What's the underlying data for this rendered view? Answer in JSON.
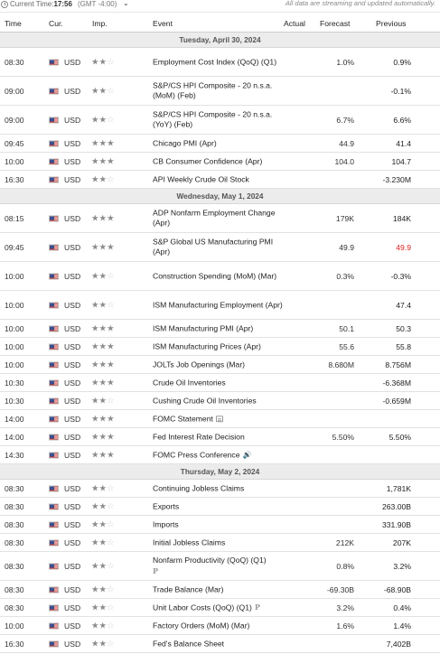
{
  "topbar": {
    "time_label": "Current Time:",
    "time_value": "17:56",
    "timezone": "(GMT -4:00)",
    "chevron": "⌄",
    "notice": "All data are streaming and updated automatically."
  },
  "columns": {
    "time": "Time",
    "currency": "Cur.",
    "importance": "Imp.",
    "event": "Event",
    "actual": "Actual",
    "forecast": "Forecast",
    "previous": "Previous"
  },
  "colors": {
    "revised_down": "#e01f1f",
    "date_row_bg": "#ececec",
    "star_on": "#8c8c8c",
    "star_off": "#cfcfcf"
  },
  "days": [
    {
      "date": "Tuesday, April 30, 2024",
      "events": [
        {
          "time": "08:30",
          "cur": "USD",
          "stars": 2,
          "event": "Employment Cost Index (QoQ) (Q1)",
          "actual": "",
          "forecast": "1.0%",
          "previous": "0.9%",
          "tall": true
        },
        {
          "time": "09:00",
          "cur": "USD",
          "stars": 2,
          "event": "S&P/CS HPI Composite - 20 n.s.a. (MoM) (Feb)",
          "actual": "",
          "forecast": "",
          "previous": "-0.1%",
          "tall": true
        },
        {
          "time": "09:00",
          "cur": "USD",
          "stars": 2,
          "event": "S&P/CS HPI Composite - 20 n.s.a. (YoY) (Feb)",
          "actual": "",
          "forecast": "6.7%",
          "previous": "6.6%",
          "tall": true
        },
        {
          "time": "09:45",
          "cur": "USD",
          "stars": 3,
          "event": "Chicago PMI (Apr)",
          "actual": "",
          "forecast": "44.9",
          "previous": "41.4"
        },
        {
          "time": "10:00",
          "cur": "USD",
          "stars": 3,
          "event": "CB Consumer Confidence (Apr)",
          "actual": "",
          "forecast": "104.0",
          "previous": "104.7"
        },
        {
          "time": "16:30",
          "cur": "USD",
          "stars": 2,
          "event": "API Weekly Crude Oil Stock",
          "actual": "",
          "forecast": "",
          "previous": "-3.230M"
        }
      ]
    },
    {
      "date": "Wednesday, May 1, 2024",
      "events": [
        {
          "time": "08:15",
          "cur": "USD",
          "stars": 3,
          "event": "ADP Nonfarm Employment Change (Apr)",
          "actual": "",
          "forecast": "179K",
          "previous": "184K",
          "tall": true
        },
        {
          "time": "09:45",
          "cur": "USD",
          "stars": 3,
          "event": "S&P Global US Manufacturing PMI (Apr)",
          "actual": "",
          "forecast": "49.9",
          "previous": "49.9",
          "prev_red": true,
          "tall": true
        },
        {
          "time": "10:00",
          "cur": "USD",
          "stars": 2,
          "event": "Construction Spending (MoM) (Mar)",
          "actual": "",
          "forecast": "0.3%",
          "previous": "-0.3%",
          "tall": true
        },
        {
          "time": "10:00",
          "cur": "USD",
          "stars": 2,
          "event": "ISM Manufacturing Employment (Apr)",
          "actual": "",
          "forecast": "",
          "previous": "47.4",
          "tall": true
        },
        {
          "time": "10:00",
          "cur": "USD",
          "stars": 3,
          "event": "ISM Manufacturing PMI (Apr)",
          "actual": "",
          "forecast": "50.1",
          "previous": "50.3"
        },
        {
          "time": "10:00",
          "cur": "USD",
          "stars": 3,
          "event": "ISM Manufacturing Prices (Apr)",
          "actual": "",
          "forecast": "55.6",
          "previous": "55.8"
        },
        {
          "time": "10:00",
          "cur": "USD",
          "stars": 3,
          "event": "JOLTs Job Openings (Mar)",
          "actual": "",
          "forecast": "8.680M",
          "previous": "8.756M"
        },
        {
          "time": "10:30",
          "cur": "USD",
          "stars": 3,
          "event": "Crude Oil Inventories",
          "actual": "",
          "forecast": "",
          "previous": "-6.368M"
        },
        {
          "time": "10:30",
          "cur": "USD",
          "stars": 2,
          "event": "Cushing Crude Oil Inventories",
          "actual": "",
          "forecast": "",
          "previous": "-0.659M"
        },
        {
          "time": "14:00",
          "cur": "USD",
          "stars": 3,
          "event": "FOMC Statement",
          "icon": "document-icon",
          "actual": "",
          "forecast": "",
          "previous": ""
        },
        {
          "time": "14:00",
          "cur": "USD",
          "stars": 3,
          "event": "Fed Interest Rate Decision",
          "actual": "",
          "forecast": "5.50%",
          "previous": "5.50%"
        },
        {
          "time": "14:30",
          "cur": "USD",
          "stars": 3,
          "event": "FOMC Press Conference",
          "icon": "speaker-icon",
          "actual": "",
          "forecast": "",
          "previous": ""
        }
      ]
    },
    {
      "date": "Thursday, May 2, 2024",
      "events": [
        {
          "time": "08:30",
          "cur": "USD",
          "stars": 2,
          "event": "Continuing Jobless Claims",
          "actual": "",
          "forecast": "",
          "previous": "1,781K"
        },
        {
          "time": "08:30",
          "cur": "USD",
          "stars": 2,
          "event": "Exports",
          "actual": "",
          "forecast": "",
          "previous": "263.00B"
        },
        {
          "time": "08:30",
          "cur": "USD",
          "stars": 2,
          "event": "Imports",
          "actual": "",
          "forecast": "",
          "previous": "331.90B"
        },
        {
          "time": "08:30",
          "cur": "USD",
          "stars": 2,
          "event": "Initial Jobless Claims",
          "actual": "",
          "forecast": "212K",
          "previous": "207K"
        },
        {
          "time": "08:30",
          "cur": "USD",
          "stars": 2,
          "event": "Nonfarm Productivity (QoQ) (Q1)",
          "icon_block": "P",
          "actual": "",
          "forecast": "0.8%",
          "previous": "3.2%",
          "tall": true
        },
        {
          "time": "08:30",
          "cur": "USD",
          "stars": 2,
          "event": "Trade Balance (Mar)",
          "actual": "",
          "forecast": "-69.30B",
          "previous": "-68.90B"
        },
        {
          "time": "08:30",
          "cur": "USD",
          "stars": 2,
          "event": "Unit Labor Costs (QoQ) (Q1)",
          "icon_inline": "P",
          "actual": "",
          "forecast": "3.2%",
          "previous": "0.4%"
        },
        {
          "time": "10:00",
          "cur": "USD",
          "stars": 2,
          "event": "Factory Orders (MoM) (Mar)",
          "actual": "",
          "forecast": "1.6%",
          "previous": "1.4%"
        },
        {
          "time": "16:30",
          "cur": "USD",
          "stars": 2,
          "event": "Fed's Balance Sheet",
          "actual": "",
          "forecast": "",
          "previous": "7,402B"
        }
      ]
    }
  ]
}
